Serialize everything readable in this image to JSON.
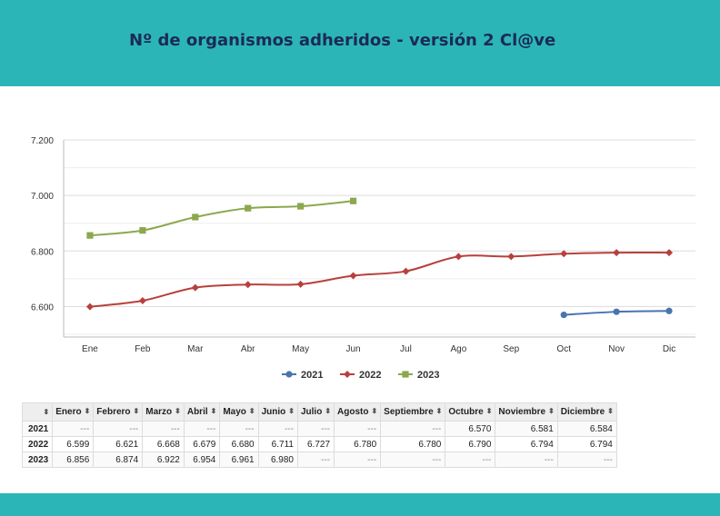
{
  "page_title": "Nº de organismos adheridos - versión 2 Cl@ve",
  "colors": {
    "header": "#2cb5b7",
    "title": "#1b2b55"
  },
  "chart_data": {
    "type": "line",
    "title": "Nº de organismos adheridos - versión 2 Cl@ve",
    "categories": [
      "Ene",
      "Feb",
      "Mar",
      "Abr",
      "May",
      "Jun",
      "Jul",
      "Ago",
      "Sep",
      "Oct",
      "Nov",
      "Dic"
    ],
    "y_ticks": [
      "6.600",
      "6.800",
      "7.000",
      "7.200"
    ],
    "ylim": [
      6490,
      7200
    ],
    "grid": true,
    "legend_position": "bottom",
    "series": [
      {
        "name": "2021",
        "color": "#4a74ad",
        "marker": "circle",
        "values": [
          null,
          null,
          null,
          null,
          null,
          null,
          null,
          null,
          null,
          6570,
          6581,
          6584
        ]
      },
      {
        "name": "2022",
        "color": "#b8403c",
        "marker": "diamond",
        "values": [
          6599,
          6621,
          6668,
          6679,
          6680,
          6711,
          6727,
          6780,
          6780,
          6790,
          6794,
          6794
        ]
      },
      {
        "name": "2023",
        "color": "#8ba84e",
        "marker": "square",
        "values": [
          6856,
          6874,
          6922,
          6954,
          6961,
          6980,
          null,
          null,
          null,
          null,
          null,
          null
        ]
      }
    ]
  },
  "table": {
    "headers": [
      "Enero",
      "Febrero",
      "Marzo",
      "Abril",
      "Mayo",
      "Junio",
      "Julio",
      "Agosto",
      "Septiembre",
      "Octubre",
      "Noviembre",
      "Diciembre"
    ],
    "sort_glyph": "⬍",
    "rows": [
      {
        "year": "2021",
        "cells": [
          "---",
          "---",
          "---",
          "---",
          "---",
          "---",
          "---",
          "---",
          "---",
          "6.570",
          "6.581",
          "6.584"
        ]
      },
      {
        "year": "2022",
        "cells": [
          "6.599",
          "6.621",
          "6.668",
          "6.679",
          "6.680",
          "6.711",
          "6.727",
          "6.780",
          "6.780",
          "6.790",
          "6.794",
          "6.794"
        ]
      },
      {
        "year": "2023",
        "cells": [
          "6.856",
          "6.874",
          "6.922",
          "6.954",
          "6.961",
          "6.980",
          "---",
          "---",
          "---",
          "---",
          "---",
          "---"
        ]
      }
    ]
  }
}
